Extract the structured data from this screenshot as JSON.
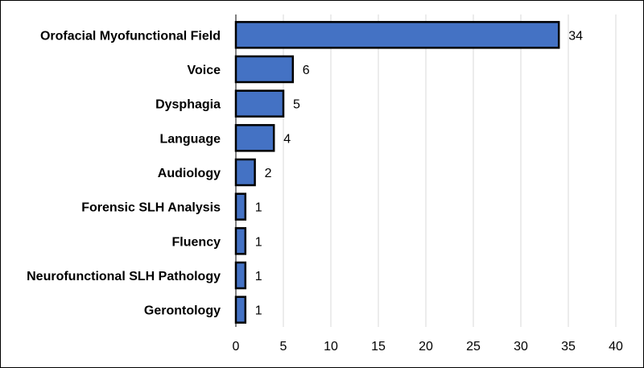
{
  "chart_data": {
    "type": "bar",
    "orientation": "horizontal",
    "title": "",
    "xlabel": "",
    "ylabel": "",
    "categories": [
      "Orofacial Myofunctional Field",
      "Voice",
      "Dysphagia",
      "Language",
      "Audiology",
      "Forensic SLH Analysis",
      "Fluency",
      "Neurofunctional SLH Pathology",
      "Gerontology"
    ],
    "values": [
      34,
      6,
      5,
      4,
      2,
      1,
      1,
      1,
      1
    ],
    "data_labels": [
      "34",
      "6",
      "5",
      "4",
      "2",
      "1",
      "1",
      "1",
      "1"
    ],
    "xlim": [
      0,
      40
    ],
    "x_ticks": [
      "0",
      "5",
      "10",
      "15",
      "20",
      "25",
      "30",
      "35",
      "40"
    ],
    "grid": "vertical",
    "legend": "none",
    "colors": {
      "bar_fill": "#4472C4",
      "bar_stroke": "#000000",
      "grid": "#D9D9D9",
      "axis": "#000000"
    }
  }
}
